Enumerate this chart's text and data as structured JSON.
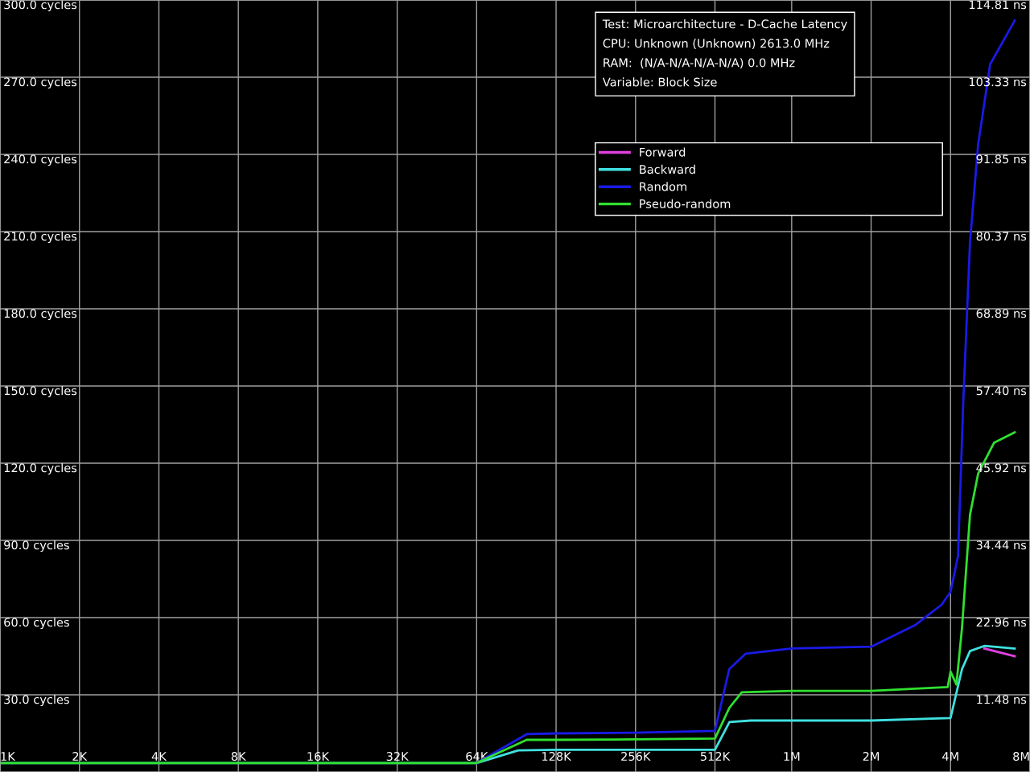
{
  "chart_data": {
    "type": "line",
    "title": "Test: Microarchitecture - D-Cache Latency",
    "annotations": [
      "CPU: Unknown (Unknown) 2613.0 MHz",
      "RAM:  (N/A-N/A-N/A-N/A) 0.0 MHz",
      "Variable: Block Size"
    ],
    "log": "x",
    "grid": true,
    "legend": "top right",
    "line_style": "solid",
    "marker": "none",
    "xlim": [
      1000,
      8000000
    ],
    "xticks": [
      {
        "value": 1000,
        "label": "1K"
      },
      {
        "value": 2000,
        "label": "2K"
      },
      {
        "value": 4000,
        "label": "4K"
      },
      {
        "value": 8000,
        "label": "8K"
      },
      {
        "value": 16000,
        "label": "16K"
      },
      {
        "value": 32000,
        "label": "32K"
      },
      {
        "value": 64000,
        "label": "64K"
      },
      {
        "value": 128000,
        "label": "128K"
      },
      {
        "value": 256000,
        "label": "256K"
      },
      {
        "value": 512000,
        "label": "512K"
      },
      {
        "value": 1000000,
        "label": "1M"
      },
      {
        "value": 2000000,
        "label": "2M"
      },
      {
        "value": 4000000,
        "label": "4M"
      },
      {
        "value": 8000000,
        "label": "8M"
      }
    ],
    "ylim": [
      0,
      300
    ],
    "yticks": [
      {
        "value": 30,
        "label": "30.0 cycles"
      },
      {
        "value": 60,
        "label": "60.0 cycles"
      },
      {
        "value": 90,
        "label": "90.0 cycles"
      },
      {
        "value": 120,
        "label": "120.0 cycles"
      },
      {
        "value": 150,
        "label": "150.0 cycles"
      },
      {
        "value": 180,
        "label": "180.0 cycles"
      },
      {
        "value": 210,
        "label": "210.0 cycles"
      },
      {
        "value": 240,
        "label": "240.0 cycles"
      },
      {
        "value": 270,
        "label": "270.0 cycles"
      },
      {
        "value": 300,
        "label": "300.0 cycles"
      }
    ],
    "y2lim": [
      0,
      114.81
    ],
    "y2ticks": [
      {
        "value": 11.48,
        "label": "11.48 ns"
      },
      {
        "value": 22.96,
        "label": "22.96 ns"
      },
      {
        "value": 34.44,
        "label": "34.44 ns"
      },
      {
        "value": 45.92,
        "label": "45.92 ns"
      },
      {
        "value": 57.4,
        "label": "57.40 ns"
      },
      {
        "value": 68.89,
        "label": "68.89 ns"
      },
      {
        "value": 80.37,
        "label": "80.37 ns"
      },
      {
        "value": 91.85,
        "label": "91.85 ns"
      },
      {
        "value": 103.33,
        "label": "103.33 ns"
      },
      {
        "value": 114.81,
        "label": "114.81 ns"
      }
    ],
    "series": [
      {
        "name": "Forward",
        "color": "#e040e0",
        "x": [
          5370000,
          7000000
        ],
        "values": [
          48,
          45
        ]
      },
      {
        "name": "Backward",
        "color": "#40e0e0",
        "x": [
          1000,
          64000,
          92000,
          128000,
          256000,
          512000,
          581000,
          700000,
          1000000,
          2000000,
          4000000,
          4420000,
          4740000,
          5370000,
          7000000
        ],
        "values": [
          3.5,
          3.5,
          8.4,
          8.6,
          8.6,
          8.6,
          19.4,
          20,
          20,
          20,
          21,
          40,
          47,
          49,
          48
        ]
      },
      {
        "name": "Random",
        "color": "#1a1ae6",
        "x": [
          64000,
          99000,
          128000,
          256000,
          512000,
          580000,
          670000,
          1000000,
          2000000,
          2930000,
          3700000,
          4000000,
          4270000,
          4470000,
          4740000,
          5090000,
          5650000,
          7000000
        ],
        "values": [
          3.5,
          14.7,
          15,
          15.3,
          16,
          40,
          46,
          48,
          48.7,
          57,
          65,
          70,
          84,
          144,
          206,
          244,
          275,
          292
        ]
      },
      {
        "name": "Pseudo-random",
        "color": "#30e030",
        "x": [
          1000,
          64000,
          99000,
          128000,
          256000,
          512000,
          581000,
          647000,
          1000000,
          2000000,
          3900000,
          4000000,
          4210000,
          4420000,
          4740000,
          5090000,
          5850000,
          7000000
        ],
        "values": [
          3.5,
          3.5,
          12.5,
          12.5,
          12.7,
          13,
          25,
          31,
          31.5,
          31.5,
          33,
          39,
          34,
          56,
          100,
          116,
          128,
          132
        ]
      }
    ]
  }
}
